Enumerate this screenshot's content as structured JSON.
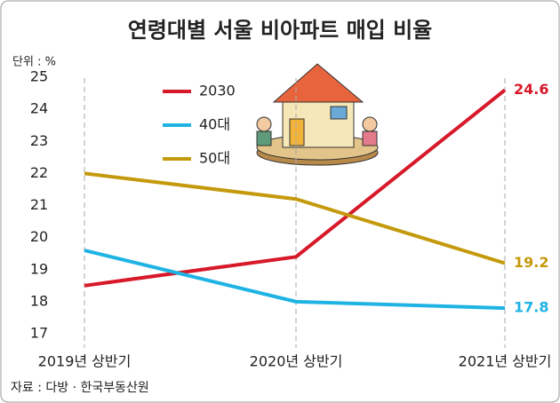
{
  "chart_data": {
    "type": "line",
    "title": "연령대별 서울 비아파트 매입 비율",
    "unit": "단위 : %",
    "source": "자료 : 다방 · 한국부동산원",
    "categories": [
      "2019년 상반기",
      "2020년 상반기",
      "2021년 상반기"
    ],
    "series": [
      {
        "name": "2030",
        "color": "#d7192a",
        "values": [
          18.5,
          19.4,
          24.6
        ]
      },
      {
        "name": "40대",
        "color": "#1fb3e4",
        "values": [
          19.6,
          18.0,
          17.8
        ]
      },
      {
        "name": "50대",
        "color": "#c49a0c",
        "values": [
          22.0,
          21.2,
          19.2
        ]
      }
    ],
    "ylim": [
      17,
      25
    ],
    "yticks": [
      17,
      18,
      19,
      20,
      21,
      22,
      23,
      24,
      25
    ]
  }
}
